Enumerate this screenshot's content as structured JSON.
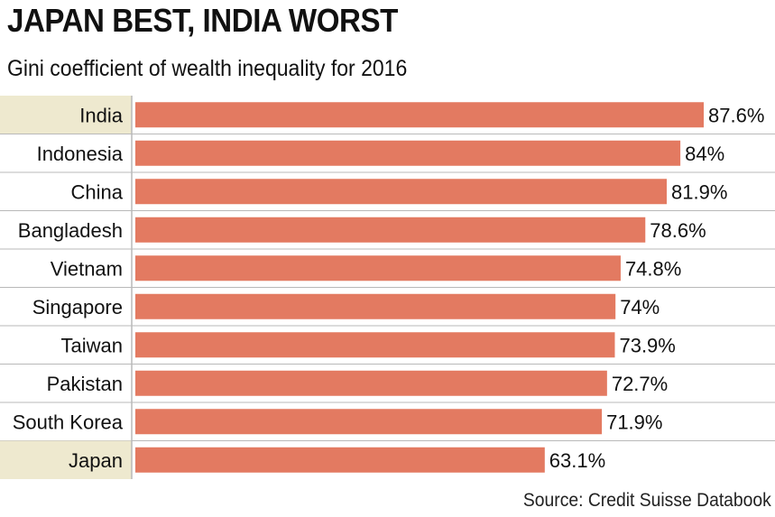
{
  "title": "JAPAN BEST, INDIA WORST",
  "subtitle": "Gini coefficient of wealth inequality for 2016",
  "source": "Source: Credit Suisse Databook",
  "colors": {
    "bar": "#e37a61",
    "highlight_row": "#eee9cf",
    "divider": "#b9b9b9",
    "text": "#111111"
  },
  "chart_data": {
    "type": "bar",
    "orientation": "horizontal",
    "title": "JAPAN BEST, INDIA WORST",
    "subtitle": "Gini coefficient of wealth inequality for 2016",
    "xlabel": "",
    "ylabel": "",
    "xlim": [
      0,
      87.6
    ],
    "categories": [
      "India",
      "Indonesia",
      "China",
      "Bangladesh",
      "Vietnam",
      "Singapore",
      "Taiwan",
      "Pakistan",
      "South Korea",
      "Japan"
    ],
    "values": [
      87.6,
      84,
      81.9,
      78.6,
      74.8,
      74,
      73.9,
      72.7,
      71.9,
      63.1
    ],
    "labels": [
      "87.6%",
      "84%",
      "81.9%",
      "78.6%",
      "74.8%",
      "74%",
      "73.9%",
      "72.7%",
      "71.9%",
      "63.1%"
    ],
    "highlighted": [
      "India",
      "Japan"
    ]
  }
}
